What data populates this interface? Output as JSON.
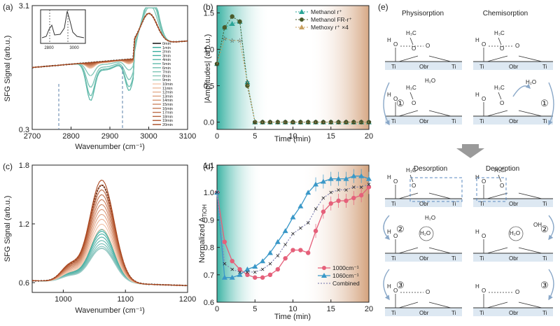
{
  "panels": {
    "a": {
      "label": "(a)",
      "ylabel": "SFG Signal (arb.u.)",
      "xlabel": "Wavenumber (cm⁻¹)",
      "legend": [
        "0min",
        "1min",
        "2min",
        "3min",
        "4min",
        "5min",
        "6min",
        "7min",
        "8min",
        "9min",
        "10min",
        "11min",
        "12min",
        "13min",
        "14min",
        "15min",
        "16min",
        "17min",
        "18min",
        "19min",
        "20min"
      ],
      "inset_ticks": [
        "2800",
        "3000"
      ]
    },
    "b": {
      "label": "(b)",
      "ylabel": "|Amplitudes| (arb.u.)",
      "xlabel": "Time (min)",
      "legend": [
        "Methanol r⁺",
        "Methanol FR-r⁺",
        "Methoxy r⁺ ×4"
      ]
    },
    "c": {
      "label": "(c)",
      "ylabel": "SFG Signal (arb.u.)",
      "xlabel": "Wavenumber (cm⁻¹)"
    },
    "d": {
      "label": "(d)",
      "ylabel": "Normalized A",
      "ylabel_sub": "TiOH",
      "xlabel": "Time (min)",
      "legend": [
        "1000cm⁻¹",
        "1060cm⁻¹",
        "Combined"
      ]
    },
    "e": {
      "label": "(e)",
      "headers": {
        "phys": "Physisorption",
        "chem": "Chemisorption",
        "des_left": "Desorption",
        "des_right": "Desorption"
      },
      "step_labels": [
        "①",
        "①",
        "②",
        "②",
        "③",
        "③"
      ],
      "species": {
        "ti": "Ti",
        "obr": "Obr",
        "h2o": "H₂O",
        "h3c": "H₃C",
        "oh": "OH",
        "o": "O",
        "h": "H"
      }
    }
  },
  "colors": {
    "teal": "#2aa597",
    "orange": "#e0692a",
    "brown": "#a3461e",
    "green_marker": "#4a5a2a",
    "pink": "#e5607a",
    "blue": "#3a98c8",
    "purple": "#8a8ab8"
  },
  "chart_data": [
    {
      "type": "line",
      "id": "a",
      "title": "",
      "xlabel": "Wavenumber (cm⁻¹)",
      "ylabel": "SFG Signal (arb.u.)",
      "xlim": [
        2700,
        3100
      ],
      "ylim": [
        0.3,
        3.1
      ],
      "xticks": [
        2700,
        2800,
        2900,
        3000,
        3100
      ],
      "yticks": [
        0.3,
        3.1
      ],
      "series_count": 21
    },
    {
      "type": "line",
      "id": "b",
      "xlabel": "Time (min)",
      "ylabel": "|Amplitudes| (arb.u.)",
      "xlim": [
        0,
        20
      ],
      "ylim": [
        -0.1,
        1.6
      ],
      "xticks": [
        0,
        5,
        10,
        15,
        20
      ],
      "yticks": [
        0.0,
        0.5,
        1.0,
        1.5
      ],
      "x": [
        0,
        1,
        2,
        3,
        4,
        5,
        6,
        7,
        8,
        9,
        10,
        11,
        12,
        13,
        14,
        15,
        16,
        17,
        18,
        19,
        20
      ],
      "series": [
        {
          "name": "Methanol r⁺",
          "values": [
            0.8,
            1.3,
            1.35,
            1.38,
            0.55,
            0,
            0,
            0,
            0,
            0,
            0,
            0,
            0,
            0,
            0,
            0,
            0,
            0,
            0,
            0,
            0
          ]
        },
        {
          "name": "Methanol FR-r⁺",
          "values": [
            0.8,
            1.3,
            1.45,
            1.38,
            0.5,
            0,
            0,
            0,
            0,
            0,
            0,
            0,
            0,
            0,
            0,
            0,
            0,
            0,
            0,
            0,
            0
          ]
        },
        {
          "name": "Methoxy r⁺ ×4",
          "values": [
            0.8,
            1.15,
            1.12,
            1.12,
            0.55,
            0,
            0,
            0,
            0,
            0,
            0,
            0,
            0,
            0,
            0,
            0,
            0,
            0,
            0,
            0,
            0
          ]
        }
      ]
    },
    {
      "type": "line",
      "id": "c",
      "xlabel": "Wavenumber (cm⁻¹)",
      "ylabel": "SFG Signal (arb.u.)",
      "xlim": [
        950,
        1200
      ],
      "ylim": [
        0.5,
        1.8
      ],
      "xticks": [
        1000,
        1100,
        1200
      ],
      "yticks": [
        0.6,
        1.2,
        1.8
      ]
    },
    {
      "type": "line",
      "id": "d",
      "xlabel": "Time (min)",
      "ylabel": "Normalized A_TiOH",
      "xlim": [
        0,
        20
      ],
      "ylim": [
        0.6,
        1.1
      ],
      "xticks": [
        0,
        5,
        10,
        15,
        20
      ],
      "yticks": [
        0.6,
        0.7,
        0.8,
        0.9,
        1.0,
        1.1
      ],
      "x": [
        0,
        1,
        2,
        3,
        4,
        5,
        6,
        7,
        8,
        9,
        10,
        11,
        12,
        13,
        14,
        15,
        16,
        17,
        18,
        19,
        20
      ],
      "series": [
        {
          "name": "1000cm⁻¹",
          "values": [
            1.0,
            0.82,
            0.75,
            0.72,
            0.7,
            0.69,
            0.69,
            0.7,
            0.72,
            0.76,
            0.79,
            0.79,
            0.78,
            0.86,
            0.93,
            0.96,
            0.97,
            0.97,
            0.98,
            0.99,
            1.02
          ]
        },
        {
          "name": "1060cm⁻¹",
          "values": [
            1.0,
            0.69,
            0.69,
            0.7,
            0.72,
            0.73,
            0.75,
            0.78,
            0.82,
            0.86,
            0.91,
            0.95,
            1.0,
            1.03,
            1.04,
            1.05,
            1.05,
            1.05,
            1.06,
            1.06,
            1.05
          ]
        },
        {
          "name": "Combined",
          "values": [
            1.0,
            0.74,
            0.72,
            0.71,
            0.71,
            0.71,
            0.72,
            0.74,
            0.77,
            0.81,
            0.85,
            0.87,
            0.89,
            0.94,
            0.98,
            1.0,
            1.01,
            1.01,
            1.02,
            1.02,
            1.03
          ]
        }
      ]
    }
  ]
}
